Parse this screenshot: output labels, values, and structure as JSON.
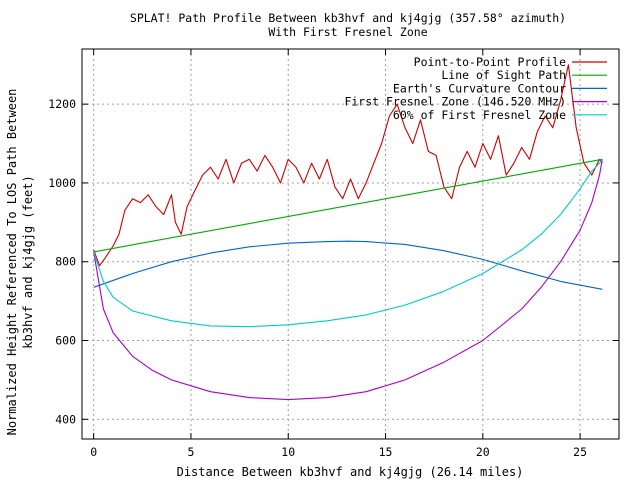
{
  "chart_data": {
    "type": "line",
    "title": "SPLAT! Path Profile Between kb3hvf and kj4gjg (357.58° azimuth)",
    "subtitle": "With First Fresnel Zone",
    "xlabel": "Distance Between kb3hvf and kj4gjg (26.14 miles)",
    "ylabel_line1": "Normalized Height Referenced To LOS Path Between",
    "ylabel_line2": "kb3hvf and kj4gjg (feet)",
    "xlim": [
      -0.6,
      27.0
    ],
    "ylim": [
      350,
      1340
    ],
    "x_ticks": [
      0,
      5,
      10,
      15,
      20,
      25
    ],
    "y_ticks": [
      400,
      600,
      800,
      1000,
      1200
    ],
    "grid": true,
    "legend_position": "top-right",
    "path_length": 26.14,
    "series": [
      {
        "name": "Point-to-Point Profile",
        "color": "#cc0000",
        "x": [
          0.0,
          0.3,
          0.6,
          1.0,
          1.3,
          1.6,
          2.0,
          2.4,
          2.8,
          3.2,
          3.6,
          4.0,
          4.2,
          4.5,
          4.8,
          5.2,
          5.6,
          6.0,
          6.4,
          6.8,
          7.2,
          7.6,
          8.0,
          8.4,
          8.8,
          9.2,
          9.6,
          10.0,
          10.4,
          10.8,
          11.2,
          11.6,
          12.0,
          12.4,
          12.8,
          13.2,
          13.6,
          14.0,
          14.4,
          14.8,
          15.2,
          15.6,
          16.0,
          16.4,
          16.8,
          17.2,
          17.6,
          18.0,
          18.4,
          18.8,
          19.2,
          19.6,
          20.0,
          20.4,
          20.8,
          21.2,
          21.6,
          22.0,
          22.4,
          22.8,
          23.2,
          23.6,
          24.0,
          24.4,
          24.8,
          25.2,
          25.6,
          26.0,
          26.14
        ],
        "values": [
          830,
          790,
          810,
          840,
          870,
          930,
          960,
          950,
          970,
          940,
          920,
          970,
          900,
          870,
          940,
          980,
          1020,
          1040,
          1010,
          1060,
          1000,
          1050,
          1060,
          1030,
          1070,
          1040,
          1000,
          1060,
          1040,
          1000,
          1050,
          1010,
          1060,
          990,
          960,
          1010,
          960,
          1000,
          1050,
          1100,
          1170,
          1200,
          1140,
          1100,
          1160,
          1080,
          1070,
          990,
          960,
          1040,
          1080,
          1040,
          1100,
          1060,
          1120,
          1020,
          1050,
          1090,
          1060,
          1130,
          1170,
          1140,
          1210,
          1300,
          1140,
          1050,
          1020,
          1060,
          1050
        ]
      },
      {
        "name": "Line of Sight Path",
        "color": "#00aa00",
        "x": [
          0.0,
          26.14
        ],
        "values": [
          825,
          1060
        ]
      },
      {
        "name": "Earth's Curvature Contour",
        "color": "#0066cc",
        "x": [
          0.0,
          2.0,
          4.0,
          6.0,
          8.0,
          10.0,
          12.0,
          13.07,
          14.0,
          16.0,
          18.0,
          20.0,
          22.0,
          24.0,
          26.14
        ],
        "values": [
          735,
          770,
          800,
          822,
          838,
          847,
          851,
          852,
          851,
          844,
          828,
          806,
          777,
          750,
          730
        ]
      },
      {
        "name": "First Fresnel Zone (146.520 MHz)",
        "color": "#aa00cc",
        "x": [
          0.0,
          0.5,
          1.0,
          2.0,
          3.0,
          4.0,
          6.0,
          8.0,
          10.0,
          12.0,
          14.0,
          16.0,
          18.0,
          20.0,
          22.0,
          23.0,
          24.0,
          25.0,
          25.6,
          26.0,
          26.14
        ],
        "values": [
          825,
          680,
          620,
          560,
          525,
          500,
          470,
          455,
          450,
          455,
          470,
          500,
          545,
          600,
          680,
          735,
          800,
          880,
          950,
          1020,
          1060
        ]
      },
      {
        "name": "60% of First Fresnel Zone",
        "color": "#00cccc",
        "x": [
          0.0,
          0.5,
          1.0,
          2.0,
          4.0,
          6.0,
          8.0,
          10.0,
          12.0,
          14.0,
          16.0,
          18.0,
          20.0,
          22.0,
          23.0,
          24.0,
          25.0,
          25.6,
          26.0,
          26.14
        ],
        "values": [
          825,
          750,
          710,
          675,
          650,
          637,
          635,
          640,
          650,
          665,
          690,
          725,
          770,
          830,
          870,
          920,
          985,
          1030,
          1050,
          1060
        ]
      }
    ]
  }
}
